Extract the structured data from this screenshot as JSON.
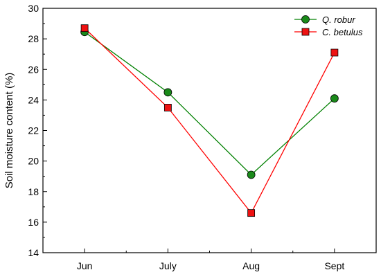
{
  "chart_data": {
    "type": "line",
    "categories": [
      "Jun",
      "July",
      "Aug",
      "Sept"
    ],
    "series": [
      {
        "name": "Q. robur",
        "values": [
          28.45,
          24.5,
          19.1,
          24.1
        ],
        "color": "#008000",
        "marker_fill": "#1a8a1a",
        "marker": "circle"
      },
      {
        "name": "C. betulus",
        "values": [
          28.7,
          23.5,
          16.6,
          27.1
        ],
        "color": "#ff0000",
        "marker_fill": "#ee1111",
        "marker": "square"
      }
    ],
    "title": "",
    "xlabel": "",
    "ylabel": "Soil moisture content (%)",
    "ylim": [
      14,
      30
    ],
    "yticks": [
      14,
      16,
      18,
      20,
      22,
      24,
      26,
      28,
      30
    ],
    "grid": false,
    "legend_position": "top-right"
  }
}
